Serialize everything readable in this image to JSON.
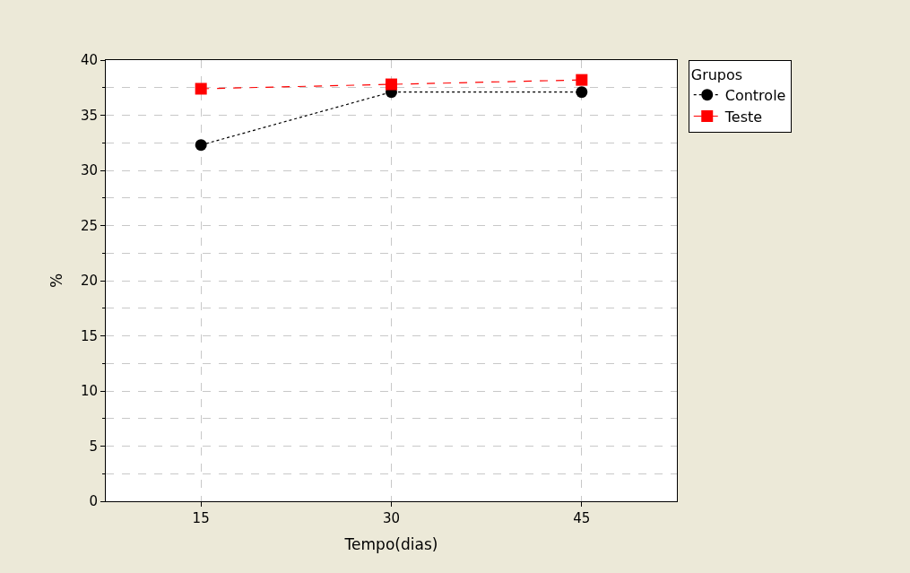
{
  "chart_data": {
    "type": "line",
    "xlabel": "Tempo(dias)",
    "ylabel": "%",
    "legend_title": "Grupos",
    "x": [
      15,
      30,
      45
    ],
    "series": [
      {
        "name": "Controle",
        "color": "#000000",
        "values": [
          32.3,
          37.1,
          37.1
        ],
        "marker": "circle",
        "line_style": "dotted"
      },
      {
        "name": "Teste",
        "color": "#ff0000",
        "values": [
          37.4,
          37.8,
          38.2
        ],
        "marker": "square",
        "line_style": "dashed"
      }
    ],
    "xlim": [
      7.5,
      52.5
    ],
    "xticks": [
      15,
      30,
      45
    ],
    "ylim": [
      0,
      40
    ],
    "yticks": [
      0,
      5,
      10,
      15,
      20,
      25,
      30,
      35,
      40
    ],
    "grid": true,
    "legend": "top right"
  }
}
